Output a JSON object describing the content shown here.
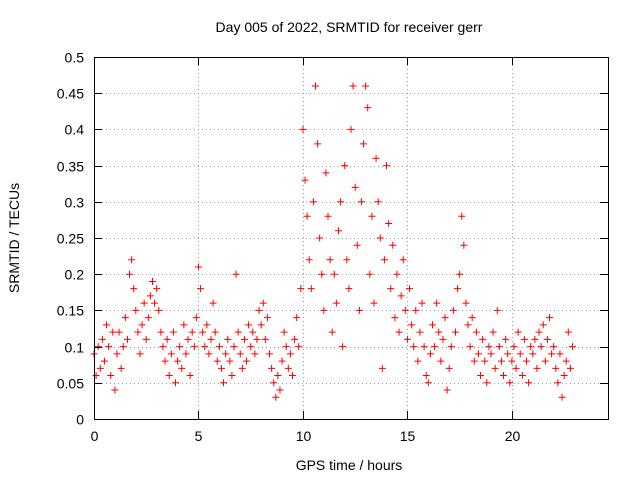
{
  "chart_data": {
    "type": "scatter",
    "title": "Day 005 of 2022, SRMTID for receiver gerr",
    "xlabel": "GPS time / hours",
    "ylabel": "SRMTID / TECUs",
    "xlim": [
      0,
      24.6
    ],
    "ylim": [
      0,
      0.5
    ],
    "x_ticks": [
      0,
      5,
      10,
      15,
      20
    ],
    "x_tick_labels": [
      "0",
      "5",
      "10",
      "15",
      "20"
    ],
    "y_ticks": [
      0,
      0.05,
      0.1,
      0.15,
      0.2,
      0.25,
      0.3,
      0.35,
      0.4,
      0.45,
      0.5
    ],
    "y_tick_labels": [
      "0",
      "0.05",
      "0.1",
      "0.15",
      "0.2",
      "0.25",
      "0.3",
      "0.35",
      "0.4",
      "0.45",
      "0.5"
    ],
    "grid": true,
    "marker": "+",
    "marker_color": "#ff0000",
    "series": [
      {
        "name": "SRMTID",
        "points": [
          [
            0.0,
            0.09
          ],
          [
            0.1,
            0.06
          ],
          [
            0.2,
            0.1
          ],
          [
            0.3,
            0.07
          ],
          [
            0.4,
            0.11
          ],
          [
            0.5,
            0.08
          ],
          [
            0.6,
            0.13
          ],
          [
            0.7,
            0.1
          ],
          [
            0.8,
            0.06
          ],
          [
            0.9,
            0.12
          ],
          [
            1.0,
            0.04
          ],
          [
            1.1,
            0.09
          ],
          [
            1.2,
            0.12
          ],
          [
            1.3,
            0.07
          ],
          [
            1.4,
            0.1
          ],
          [
            1.5,
            0.14
          ],
          [
            1.6,
            0.11
          ],
          [
            1.7,
            0.2
          ],
          [
            1.8,
            0.22
          ],
          [
            1.9,
            0.18
          ],
          [
            2.0,
            0.15
          ],
          [
            2.1,
            0.12
          ],
          [
            2.2,
            0.09
          ],
          [
            2.3,
            0.13
          ],
          [
            2.4,
            0.16
          ],
          [
            2.5,
            0.11
          ],
          [
            2.6,
            0.14
          ],
          [
            2.7,
            0.17
          ],
          [
            2.8,
            0.19
          ],
          [
            2.9,
            0.16
          ],
          [
            3.0,
            0.18
          ],
          [
            3.1,
            0.15
          ],
          [
            3.2,
            0.12
          ],
          [
            3.3,
            0.1
          ],
          [
            3.4,
            0.08
          ],
          [
            3.5,
            0.11
          ],
          [
            3.6,
            0.06
          ],
          [
            3.7,
            0.09
          ],
          [
            3.8,
            0.12
          ],
          [
            3.9,
            0.05
          ],
          [
            4.0,
            0.08
          ],
          [
            4.1,
            0.1
          ],
          [
            4.2,
            0.07
          ],
          [
            4.3,
            0.13
          ],
          [
            4.4,
            0.09
          ],
          [
            4.5,
            0.11
          ],
          [
            4.6,
            0.06
          ],
          [
            4.7,
            0.12
          ],
          [
            4.8,
            0.1
          ],
          [
            4.9,
            0.14
          ],
          [
            5.0,
            0.21
          ],
          [
            5.1,
            0.18
          ],
          [
            5.2,
            0.12
          ],
          [
            5.3,
            0.1
          ],
          [
            5.4,
            0.13
          ],
          [
            5.5,
            0.09
          ],
          [
            5.6,
            0.11
          ],
          [
            5.7,
            0.16
          ],
          [
            5.8,
            0.12
          ],
          [
            5.9,
            0.08
          ],
          [
            6.0,
            0.1
          ],
          [
            6.1,
            0.07
          ],
          [
            6.2,
            0.05
          ],
          [
            6.3,
            0.09
          ],
          [
            6.4,
            0.11
          ],
          [
            6.5,
            0.08
          ],
          [
            6.6,
            0.06
          ],
          [
            6.7,
            0.1
          ],
          [
            6.8,
            0.2
          ],
          [
            6.9,
            0.12
          ],
          [
            7.0,
            0.09
          ],
          [
            7.1,
            0.07
          ],
          [
            7.2,
            0.11
          ],
          [
            7.3,
            0.08
          ],
          [
            7.4,
            0.13
          ],
          [
            7.5,
            0.1
          ],
          [
            7.6,
            0.12
          ],
          [
            7.7,
            0.09
          ],
          [
            7.8,
            0.11
          ],
          [
            7.9,
            0.15
          ],
          [
            8.0,
            0.13
          ],
          [
            8.1,
            0.16
          ],
          [
            8.2,
            0.11
          ],
          [
            8.3,
            0.14
          ],
          [
            8.4,
            0.09
          ],
          [
            8.5,
            0.07
          ],
          [
            8.6,
            0.05
          ],
          [
            8.7,
            0.03
          ],
          [
            8.8,
            0.06
          ],
          [
            8.9,
            0.04
          ],
          [
            9.0,
            0.08
          ],
          [
            9.1,
            0.12
          ],
          [
            9.2,
            0.1
          ],
          [
            9.3,
            0.07
          ],
          [
            9.4,
            0.09
          ],
          [
            9.5,
            0.06
          ],
          [
            9.6,
            0.11
          ],
          [
            9.7,
            0.14
          ],
          [
            9.8,
            0.1
          ],
          [
            9.9,
            0.18
          ],
          [
            10.0,
            0.4
          ],
          [
            10.1,
            0.33
          ],
          [
            10.2,
            0.28
          ],
          [
            10.3,
            0.22
          ],
          [
            10.4,
            0.18
          ],
          [
            10.5,
            0.3
          ],
          [
            10.6,
            0.46
          ],
          [
            10.7,
            0.38
          ],
          [
            10.8,
            0.25
          ],
          [
            10.9,
            0.2
          ],
          [
            11.0,
            0.15
          ],
          [
            11.1,
            0.34
          ],
          [
            11.2,
            0.28
          ],
          [
            11.3,
            0.22
          ],
          [
            11.4,
            0.12
          ],
          [
            11.5,
            0.2
          ],
          [
            11.6,
            0.16
          ],
          [
            11.7,
            0.26
          ],
          [
            11.8,
            0.3
          ],
          [
            11.9,
            0.1
          ],
          [
            12.0,
            0.35
          ],
          [
            12.1,
            0.22
          ],
          [
            12.2,
            0.18
          ],
          [
            12.3,
            0.4
          ],
          [
            12.4,
            0.46
          ],
          [
            12.5,
            0.32
          ],
          [
            12.6,
            0.24
          ],
          [
            12.7,
            0.15
          ],
          [
            12.8,
            0.3
          ],
          [
            12.9,
            0.38
          ],
          [
            13.0,
            0.46
          ],
          [
            13.1,
            0.43
          ],
          [
            13.2,
            0.2
          ],
          [
            13.3,
            0.28
          ],
          [
            13.4,
            0.16
          ],
          [
            13.5,
            0.36
          ],
          [
            13.6,
            0.3
          ],
          [
            13.7,
            0.25
          ],
          [
            13.8,
            0.07
          ],
          [
            13.9,
            0.22
          ],
          [
            14.0,
            0.35
          ],
          [
            14.1,
            0.27
          ],
          [
            14.2,
            0.18
          ],
          [
            14.3,
            0.24
          ],
          [
            14.4,
            0.14
          ],
          [
            14.5,
            0.2
          ],
          [
            14.6,
            0.12
          ],
          [
            14.7,
            0.17
          ],
          [
            14.8,
            0.22
          ],
          [
            14.9,
            0.15
          ],
          [
            15.0,
            0.11
          ],
          [
            15.1,
            0.18
          ],
          [
            15.2,
            0.13
          ],
          [
            15.3,
            0.1
          ],
          [
            15.4,
            0.15
          ],
          [
            15.5,
            0.08
          ],
          [
            15.6,
            0.12
          ],
          [
            15.7,
            0.16
          ],
          [
            15.8,
            0.1
          ],
          [
            15.9,
            0.06
          ],
          [
            16.0,
            0.05
          ],
          [
            16.1,
            0.09
          ],
          [
            16.2,
            0.13
          ],
          [
            16.3,
            0.1
          ],
          [
            16.4,
            0.16
          ],
          [
            16.5,
            0.12
          ],
          [
            16.6,
            0.08
          ],
          [
            16.7,
            0.11
          ],
          [
            16.8,
            0.14
          ],
          [
            16.9,
            0.04
          ],
          [
            17.0,
            0.07
          ],
          [
            17.1,
            0.1
          ],
          [
            17.2,
            0.15
          ],
          [
            17.3,
            0.12
          ],
          [
            17.4,
            0.18
          ],
          [
            17.5,
            0.2
          ],
          [
            17.6,
            0.28
          ],
          [
            17.7,
            0.24
          ],
          [
            17.8,
            0.16
          ],
          [
            17.9,
            0.13
          ],
          [
            18.0,
            0.1
          ],
          [
            18.1,
            0.14
          ],
          [
            18.2,
            0.08
          ],
          [
            18.3,
            0.12
          ],
          [
            18.4,
            0.09
          ],
          [
            18.5,
            0.06
          ],
          [
            18.6,
            0.11
          ],
          [
            18.7,
            0.08
          ],
          [
            18.8,
            0.05
          ],
          [
            18.9,
            0.1
          ],
          [
            19.0,
            0.09
          ],
          [
            19.1,
            0.12
          ],
          [
            19.2,
            0.07
          ],
          [
            19.3,
            0.15
          ],
          [
            19.4,
            0.1
          ],
          [
            19.5,
            0.08
          ],
          [
            19.6,
            0.06
          ],
          [
            19.7,
            0.11
          ],
          [
            19.8,
            0.09
          ],
          [
            19.9,
            0.05
          ],
          [
            20.0,
            0.08
          ],
          [
            20.1,
            0.1
          ],
          [
            20.2,
            0.07
          ],
          [
            20.3,
            0.12
          ],
          [
            20.4,
            0.09
          ],
          [
            20.5,
            0.06
          ],
          [
            20.6,
            0.11
          ],
          [
            20.7,
            0.08
          ],
          [
            20.8,
            0.05
          ],
          [
            20.9,
            0.1
          ],
          [
            21.0,
            0.09
          ],
          [
            21.1,
            0.11
          ],
          [
            21.2,
            0.07
          ],
          [
            21.3,
            0.12
          ],
          [
            21.4,
            0.1
          ],
          [
            21.5,
            0.13
          ],
          [
            21.6,
            0.08
          ],
          [
            21.7,
            0.11
          ],
          [
            21.8,
            0.14
          ],
          [
            21.9,
            0.09
          ],
          [
            22.0,
            0.1
          ],
          [
            22.1,
            0.07
          ],
          [
            22.2,
            0.05
          ],
          [
            22.3,
            0.09
          ],
          [
            22.4,
            0.03
          ],
          [
            22.5,
            0.06
          ],
          [
            22.6,
            0.08
          ],
          [
            22.7,
            0.12
          ],
          [
            22.8,
            0.07
          ],
          [
            22.9,
            0.1
          ]
        ]
      }
    ]
  }
}
